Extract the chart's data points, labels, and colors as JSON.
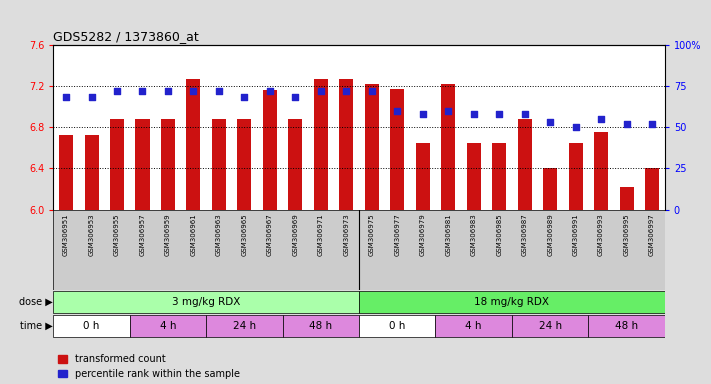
{
  "title": "GDS5282 / 1373860_at",
  "samples": [
    "GSM306951",
    "GSM306953",
    "GSM306955",
    "GSM306957",
    "GSM306959",
    "GSM306961",
    "GSM306963",
    "GSM306965",
    "GSM306967",
    "GSM306969",
    "GSM306971",
    "GSM306973",
    "GSM306975",
    "GSM306977",
    "GSM306979",
    "GSM306981",
    "GSM306983",
    "GSM306985",
    "GSM306987",
    "GSM306989",
    "GSM306991",
    "GSM306993",
    "GSM306995",
    "GSM306997"
  ],
  "bar_values": [
    6.72,
    6.72,
    6.88,
    6.88,
    6.88,
    7.27,
    6.88,
    6.88,
    7.16,
    6.88,
    7.27,
    7.27,
    7.22,
    7.17,
    6.65,
    7.22,
    6.65,
    6.65,
    6.88,
    6.4,
    6.65,
    6.75,
    6.22,
    6.4
  ],
  "percentile_values": [
    68,
    68,
    72,
    72,
    72,
    72,
    72,
    68,
    72,
    68,
    72,
    72,
    72,
    60,
    58,
    60,
    58,
    58,
    58,
    53,
    50,
    55,
    52,
    52
  ],
  "ylim_left": [
    6.0,
    7.6
  ],
  "ylim_right": [
    0,
    100
  ],
  "yticks_left": [
    6.0,
    6.4,
    6.8,
    7.2,
    7.6
  ],
  "yticks_right": [
    0,
    25,
    50,
    75,
    100
  ],
  "bar_color": "#CC1111",
  "dot_color": "#2222CC",
  "bar_bottom": 6.0,
  "dose_groups": [
    {
      "label": "3 mg/kg RDX",
      "start": 0,
      "end": 12,
      "color": "#AAFFAA"
    },
    {
      "label": "18 mg/kg RDX",
      "start": 12,
      "end": 24,
      "color": "#66EE66"
    }
  ],
  "time_groups": [
    {
      "label": "0 h",
      "start": 0,
      "end": 3,
      "color": "#FFFFFF"
    },
    {
      "label": "4 h",
      "start": 3,
      "end": 6,
      "color": "#DD88DD"
    },
    {
      "label": "24 h",
      "start": 6,
      "end": 9,
      "color": "#DD88DD"
    },
    {
      "label": "48 h",
      "start": 9,
      "end": 12,
      "color": "#DD88DD"
    },
    {
      "label": "0 h",
      "start": 12,
      "end": 15,
      "color": "#FFFFFF"
    },
    {
      "label": "4 h",
      "start": 15,
      "end": 18,
      "color": "#DD88DD"
    },
    {
      "label": "24 h",
      "start": 18,
      "end": 21,
      "color": "#DD88DD"
    },
    {
      "label": "48 h",
      "start": 21,
      "end": 24,
      "color": "#DD88DD"
    }
  ],
  "legend_items": [
    {
      "label": "transformed count",
      "color": "#CC1111"
    },
    {
      "label": "percentile rank within the sample",
      "color": "#2222CC"
    }
  ],
  "fig_bg": "#DDDDDD",
  "plot_bg": "#FFFFFF",
  "grid_lines": [
    6.4,
    6.8,
    7.2
  ],
  "label_fontsize": 7,
  "tick_fontsize": 6.5,
  "bar_width": 0.55
}
